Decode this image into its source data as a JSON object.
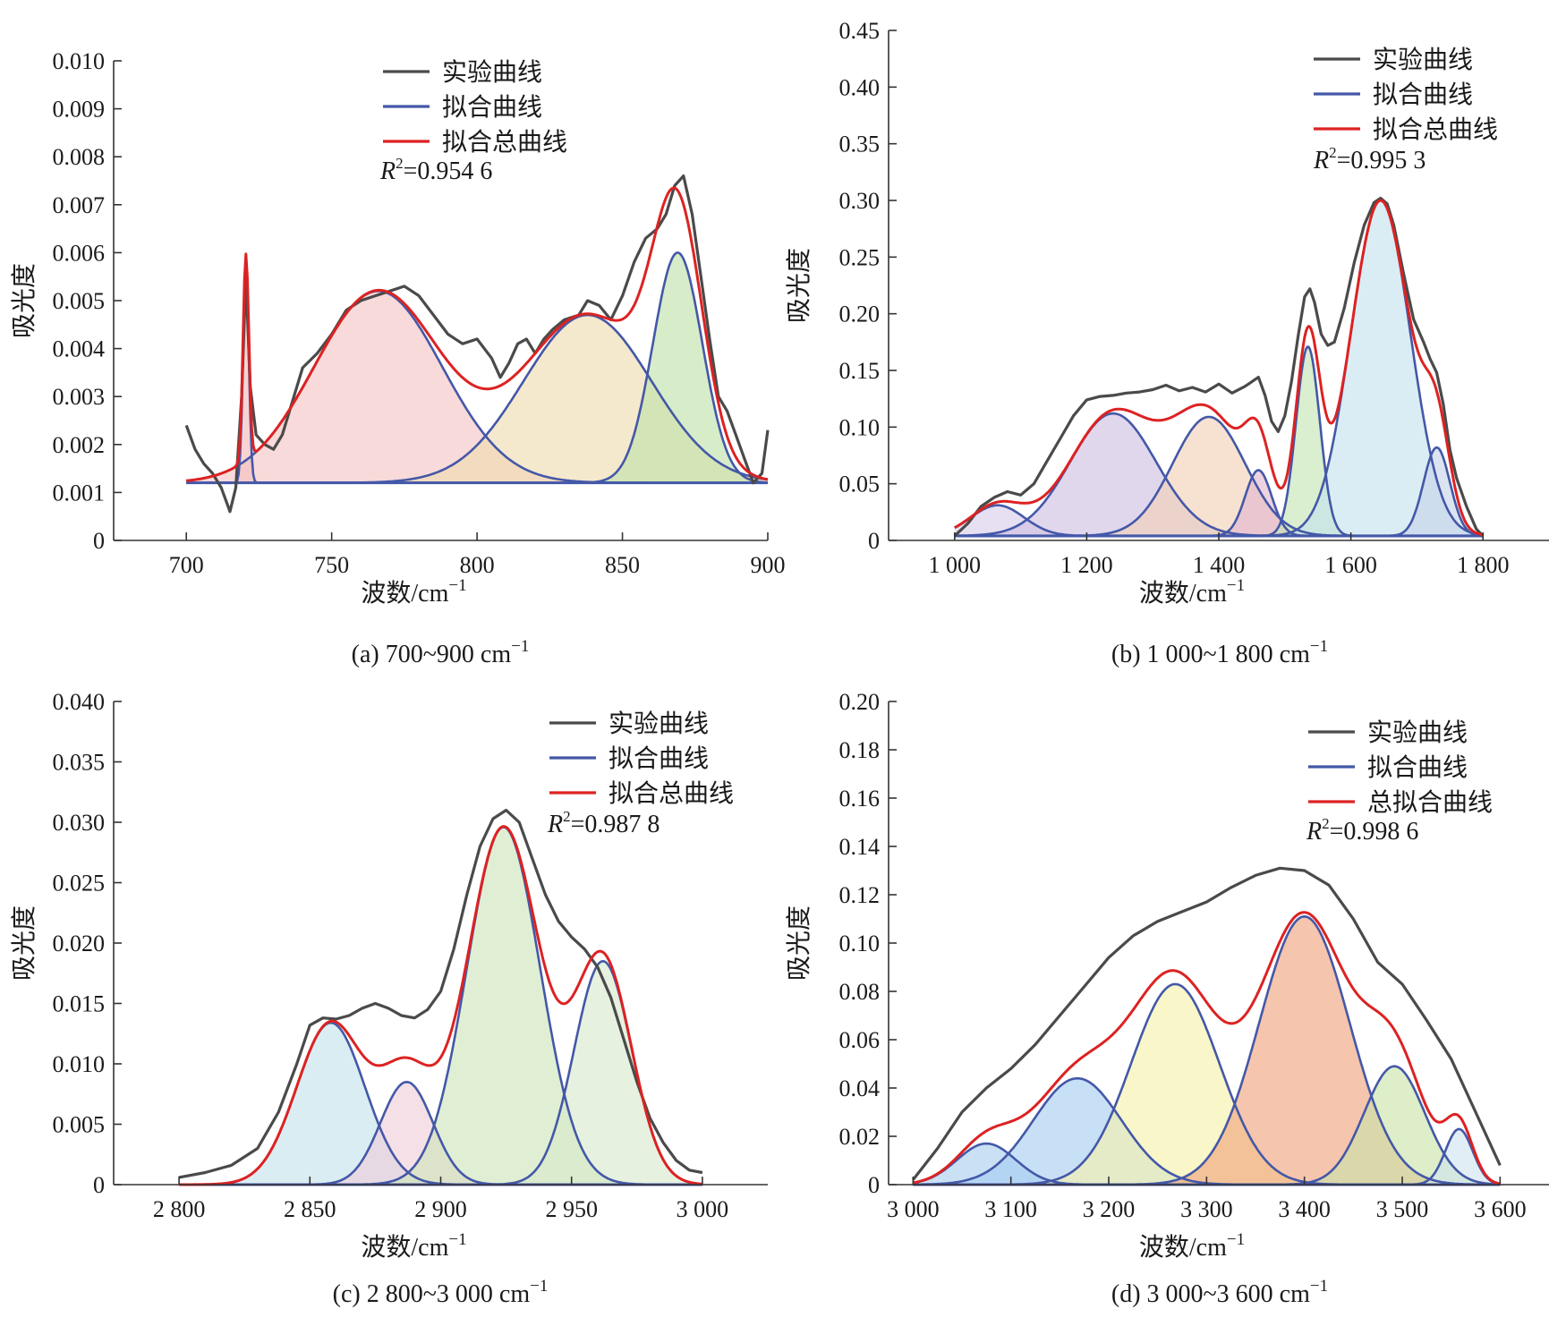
{
  "figure": {
    "colors": {
      "experimental": "#4a4a4a",
      "component": "#4458a8",
      "total": "#dd2222",
      "axis": "#333333"
    }
  },
  "chart_data": [
    {
      "id": "a",
      "type": "line",
      "caption": "(a) 700~900 cm",
      "caption_sup": "−1",
      "xlabel": "波数/cm",
      "xlabel_sup": "−1",
      "ylabel": "吸光度",
      "xlim": [
        675,
        900
      ],
      "ylim": [
        0,
        0.01
      ],
      "xticks": [
        700,
        750,
        800,
        850,
        900
      ],
      "xtick_labels": [
        "700",
        "750",
        "800",
        "850",
        "900"
      ],
      "yticks": [
        0,
        0.001,
        0.002,
        0.003,
        0.004,
        0.005,
        0.006,
        0.007,
        0.008,
        0.009,
        0.01
      ],
      "ytick_labels": [
        "0",
        "0.001",
        "0.002",
        "0.003",
        "0.004",
        "0.005",
        "0.006",
        "0.007",
        "0.008",
        "0.009",
        "0.010"
      ],
      "legend": [
        "实验曲线",
        "拟合曲线",
        "拟合总曲线"
      ],
      "legend_position": "top-center",
      "r2_label": "R",
      "r2_value": "=0.954 6",
      "baseline": 0.0012,
      "x_range": [
        700,
        900
      ],
      "components": [
        {
          "center": 720.5,
          "amplitude": 0.0043,
          "sigma": 1.0,
          "fill": "#f4b8b8"
        },
        {
          "center": 766,
          "amplitude": 0.004,
          "sigma": 22,
          "fill": "#f4c4c4"
        },
        {
          "center": 838,
          "amplitude": 0.0035,
          "sigma": 22,
          "fill": "#efdcae"
        },
        {
          "center": 869,
          "amplitude": 0.0048,
          "sigma": 8.5,
          "fill": "#bfe0a8"
        }
      ],
      "experimental": [
        [
          700,
          0.0024
        ],
        [
          703,
          0.0019
        ],
        [
          706,
          0.0016
        ],
        [
          709,
          0.0014
        ],
        [
          712,
          0.0011
        ],
        [
          715,
          0.0006
        ],
        [
          717,
          0.0011
        ],
        [
          719,
          0.003
        ],
        [
          720.5,
          0.0055
        ],
        [
          722,
          0.0032
        ],
        [
          724,
          0.0022
        ],
        [
          727,
          0.002
        ],
        [
          730,
          0.0019
        ],
        [
          733,
          0.0022
        ],
        [
          736,
          0.0028
        ],
        [
          740,
          0.0036
        ],
        [
          745,
          0.0039
        ],
        [
          750,
          0.0043
        ],
        [
          755,
          0.0048
        ],
        [
          760,
          0.005
        ],
        [
          765,
          0.0051
        ],
        [
          770,
          0.0052
        ],
        [
          775,
          0.0053
        ],
        [
          780,
          0.0051
        ],
        [
          785,
          0.0047
        ],
        [
          790,
          0.0043
        ],
        [
          795,
          0.0041
        ],
        [
          800,
          0.0042
        ],
        [
          805,
          0.0038
        ],
        [
          808,
          0.0034
        ],
        [
          811,
          0.0037
        ],
        [
          814,
          0.0041
        ],
        [
          817,
          0.0042
        ],
        [
          820,
          0.0039
        ],
        [
          823,
          0.0042
        ],
        [
          826,
          0.0044
        ],
        [
          830,
          0.0046
        ],
        [
          835,
          0.0047
        ],
        [
          838,
          0.005
        ],
        [
          842,
          0.0049
        ],
        [
          846,
          0.0046
        ],
        [
          850,
          0.0051
        ],
        [
          854,
          0.0058
        ],
        [
          858,
          0.0063
        ],
        [
          862,
          0.0065
        ],
        [
          865,
          0.0068
        ],
        [
          868,
          0.0074
        ],
        [
          871,
          0.0076
        ],
        [
          874,
          0.0068
        ],
        [
          877,
          0.0055
        ],
        [
          880,
          0.0042
        ],
        [
          883,
          0.003
        ],
        [
          886,
          0.0027
        ],
        [
          889,
          0.0022
        ],
        [
          892,
          0.0017
        ],
        [
          895,
          0.0012
        ],
        [
          898,
          0.0014
        ],
        [
          900,
          0.0023
        ]
      ]
    },
    {
      "id": "b",
      "type": "line",
      "caption": "(b) 1 000~1 800 cm",
      "caption_sup": "−1",
      "xlabel": "波数/cm",
      "xlabel_sup": "−1",
      "ylabel": "吸光度",
      "xlim": [
        900,
        1900
      ],
      "ylim": [
        0,
        0.45
      ],
      "xticks": [
        1000,
        1200,
        1400,
        1600,
        1800
      ],
      "xtick_labels": [
        "1 000",
        "1 200",
        "1 400",
        "1 600",
        "1 800"
      ],
      "yticks": [
        0,
        0.05,
        0.1,
        0.15,
        0.2,
        0.25,
        0.3,
        0.35,
        0.4,
        0.45
      ],
      "ytick_labels": [
        "0",
        "0.05",
        "0.10",
        "0.15",
        "0.20",
        "0.25",
        "0.30",
        "0.35",
        "0.40",
        "0.45"
      ],
      "legend": [
        "实验曲线",
        "拟合曲线",
        "拟合总曲线"
      ],
      "legend_position": "top-right",
      "r2_label": "R",
      "r2_value": "=0.995 3",
      "baseline": 0.004,
      "x_range": [
        1000,
        1800
      ],
      "components": [
        {
          "center": 1065,
          "amplitude": 0.027,
          "sigma": 40,
          "fill": "#d8ccea"
        },
        {
          "center": 1240,
          "amplitude": 0.108,
          "sigma": 65,
          "fill": "#cdbfe2"
        },
        {
          "center": 1385,
          "amplitude": 0.105,
          "sigma": 55,
          "fill": "#f2d0b6"
        },
        {
          "center": 1460,
          "amplitude": 0.058,
          "sigma": 20,
          "fill": "#e2b6cf"
        },
        {
          "center": 1535,
          "amplitude": 0.167,
          "sigma": 18,
          "fill": "#c3e3b3"
        },
        {
          "center": 1645,
          "amplitude": 0.296,
          "sigma": 45,
          "fill": "#c4e2ee"
        },
        {
          "center": 1730,
          "amplitude": 0.078,
          "sigma": 20,
          "fill": "#c7d3ea"
        }
      ],
      "experimental": [
        [
          1000,
          0.004
        ],
        [
          1020,
          0.015
        ],
        [
          1040,
          0.03
        ],
        [
          1060,
          0.038
        ],
        [
          1080,
          0.043
        ],
        [
          1100,
          0.04
        ],
        [
          1120,
          0.05
        ],
        [
          1140,
          0.07
        ],
        [
          1160,
          0.09
        ],
        [
          1180,
          0.11
        ],
        [
          1200,
          0.124
        ],
        [
          1220,
          0.127
        ],
        [
          1240,
          0.128
        ],
        [
          1260,
          0.13
        ],
        [
          1280,
          0.131
        ],
        [
          1300,
          0.133
        ],
        [
          1320,
          0.137
        ],
        [
          1340,
          0.132
        ],
        [
          1360,
          0.135
        ],
        [
          1380,
          0.131
        ],
        [
          1400,
          0.138
        ],
        [
          1420,
          0.13
        ],
        [
          1440,
          0.136
        ],
        [
          1460,
          0.144
        ],
        [
          1470,
          0.128
        ],
        [
          1480,
          0.105
        ],
        [
          1490,
          0.096
        ],
        [
          1500,
          0.11
        ],
        [
          1510,
          0.14
        ],
        [
          1520,
          0.18
        ],
        [
          1530,
          0.215
        ],
        [
          1538,
          0.222
        ],
        [
          1545,
          0.21
        ],
        [
          1555,
          0.182
        ],
        [
          1565,
          0.172
        ],
        [
          1575,
          0.175
        ],
        [
          1590,
          0.205
        ],
        [
          1605,
          0.245
        ],
        [
          1620,
          0.278
        ],
        [
          1635,
          0.298
        ],
        [
          1645,
          0.302
        ],
        [
          1655,
          0.297
        ],
        [
          1665,
          0.278
        ],
        [
          1680,
          0.235
        ],
        [
          1695,
          0.195
        ],
        [
          1710,
          0.175
        ],
        [
          1720,
          0.16
        ],
        [
          1730,
          0.148
        ],
        [
          1740,
          0.12
        ],
        [
          1750,
          0.08
        ],
        [
          1760,
          0.055
        ],
        [
          1775,
          0.03
        ],
        [
          1790,
          0.01
        ],
        [
          1800,
          0.004
        ]
      ]
    },
    {
      "id": "c",
      "type": "line",
      "caption": "(c) 2 800~3 000 cm",
      "caption_sup": "−1",
      "xlabel": "波数/cm",
      "xlabel_sup": "−1",
      "ylabel": "吸光度",
      "xlim": [
        2775,
        3025
      ],
      "ylim": [
        0,
        0.04
      ],
      "xticks": [
        2800,
        2850,
        2900,
        2950,
        3000
      ],
      "xtick_labels": [
        "2 800",
        "2 850",
        "2 900",
        "2 950",
        "3 000"
      ],
      "yticks": [
        0,
        0.005,
        0.01,
        0.015,
        0.02,
        0.025,
        0.03,
        0.035,
        0.04
      ],
      "ytick_labels": [
        "0",
        "0.005",
        "0.010",
        "0.015",
        "0.020",
        "0.025",
        "0.030",
        "0.035",
        "0.040"
      ],
      "legend": [
        "实验曲线",
        "拟合曲线",
        "拟合总曲线"
      ],
      "legend_position": "top-right",
      "r2_label": "R",
      "r2_value": "=0.987 8",
      "baseline": 0.0,
      "x_range": [
        2800,
        3000
      ],
      "components": [
        {
          "center": 2858,
          "amplitude": 0.0134,
          "sigma": 13,
          "fill": "#c4e2ec"
        },
        {
          "center": 2887,
          "amplitude": 0.0085,
          "sigma": 10,
          "fill": "#efcdd8"
        },
        {
          "center": 2924,
          "amplitude": 0.0296,
          "sigma": 14,
          "fill": "#cde5b8"
        },
        {
          "center": 2962,
          "amplitude": 0.0185,
          "sigma": 11,
          "fill": "#d6e8cb"
        }
      ],
      "experimental": [
        [
          2800,
          0.0006
        ],
        [
          2810,
          0.001
        ],
        [
          2820,
          0.0016
        ],
        [
          2830,
          0.003
        ],
        [
          2838,
          0.006
        ],
        [
          2845,
          0.01
        ],
        [
          2850,
          0.0132
        ],
        [
          2855,
          0.0138
        ],
        [
          2860,
          0.0137
        ],
        [
          2865,
          0.014
        ],
        [
          2870,
          0.0146
        ],
        [
          2875,
          0.015
        ],
        [
          2880,
          0.0146
        ],
        [
          2885,
          0.014
        ],
        [
          2890,
          0.0138
        ],
        [
          2895,
          0.0145
        ],
        [
          2900,
          0.016
        ],
        [
          2905,
          0.0195
        ],
        [
          2910,
          0.024
        ],
        [
          2915,
          0.028
        ],
        [
          2920,
          0.0303
        ],
        [
          2925,
          0.031
        ],
        [
          2930,
          0.03
        ],
        [
          2935,
          0.027
        ],
        [
          2940,
          0.024
        ],
        [
          2945,
          0.0218
        ],
        [
          2950,
          0.0205
        ],
        [
          2955,
          0.0195
        ],
        [
          2960,
          0.018
        ],
        [
          2965,
          0.0155
        ],
        [
          2970,
          0.012
        ],
        [
          2975,
          0.0085
        ],
        [
          2980,
          0.0055
        ],
        [
          2985,
          0.0035
        ],
        [
          2990,
          0.002
        ],
        [
          2995,
          0.0012
        ],
        [
          3000,
          0.001
        ]
      ]
    },
    {
      "id": "d",
      "type": "line",
      "caption": "(d) 3 000~3 600 cm",
      "caption_sup": "−1",
      "xlabel": "波数/cm",
      "xlabel_sup": "−1",
      "ylabel": "吸光度",
      "xlim": [
        2975,
        3650
      ],
      "ylim": [
        0,
        0.2
      ],
      "xticks": [
        3000,
        3100,
        3200,
        3300,
        3400,
        3500,
        3600
      ],
      "xtick_labels": [
        "3 000",
        "3 100",
        "3 200",
        "3 300",
        "3 400",
        "3 500",
        "3 600"
      ],
      "yticks": [
        0,
        0.02,
        0.04,
        0.06,
        0.08,
        0.1,
        0.12,
        0.14,
        0.16,
        0.18,
        0.2
      ],
      "ytick_labels": [
        "0",
        "0.02",
        "0.04",
        "0.06",
        "0.08",
        "0.10",
        "0.12",
        "0.14",
        "0.16",
        "0.18",
        "0.20"
      ],
      "legend": [
        "实验曲线",
        "拟合曲线",
        "总拟合曲线"
      ],
      "legend_position": "top-right",
      "r2_label": "R",
      "r2_value": "=0.998 6",
      "baseline": 0.0,
      "x_range": [
        3000,
        3600
      ],
      "components": [
        {
          "center": 3075,
          "amplitude": 0.017,
          "sigma": 30,
          "fill": "#a8cdef"
        },
        {
          "center": 3168,
          "amplitude": 0.044,
          "sigma": 45,
          "fill": "#a7cdf0"
        },
        {
          "center": 3268,
          "amplitude": 0.083,
          "sigma": 45,
          "fill": "#f6f2a8"
        },
        {
          "center": 3400,
          "amplitude": 0.111,
          "sigma": 46,
          "fill": "#f0a27a"
        },
        {
          "center": 3492,
          "amplitude": 0.049,
          "sigma": 31,
          "fill": "#c8e3a8"
        },
        {
          "center": 3558,
          "amplitude": 0.023,
          "sigma": 14,
          "fill": "#cfe3f0"
        }
      ],
      "experimental": [
        [
          3000,
          0.002
        ],
        [
          3025,
          0.015
        ],
        [
          3050,
          0.03
        ],
        [
          3075,
          0.04
        ],
        [
          3100,
          0.048
        ],
        [
          3125,
          0.058
        ],
        [
          3150,
          0.07
        ],
        [
          3175,
          0.082
        ],
        [
          3200,
          0.094
        ],
        [
          3225,
          0.103
        ],
        [
          3250,
          0.109
        ],
        [
          3275,
          0.113
        ],
        [
          3300,
          0.117
        ],
        [
          3325,
          0.123
        ],
        [
          3350,
          0.128
        ],
        [
          3375,
          0.131
        ],
        [
          3400,
          0.13
        ],
        [
          3425,
          0.124
        ],
        [
          3450,
          0.11
        ],
        [
          3475,
          0.092
        ],
        [
          3500,
          0.083
        ],
        [
          3525,
          0.068
        ],
        [
          3550,
          0.052
        ],
        [
          3575,
          0.03
        ],
        [
          3600,
          0.008
        ]
      ]
    }
  ]
}
